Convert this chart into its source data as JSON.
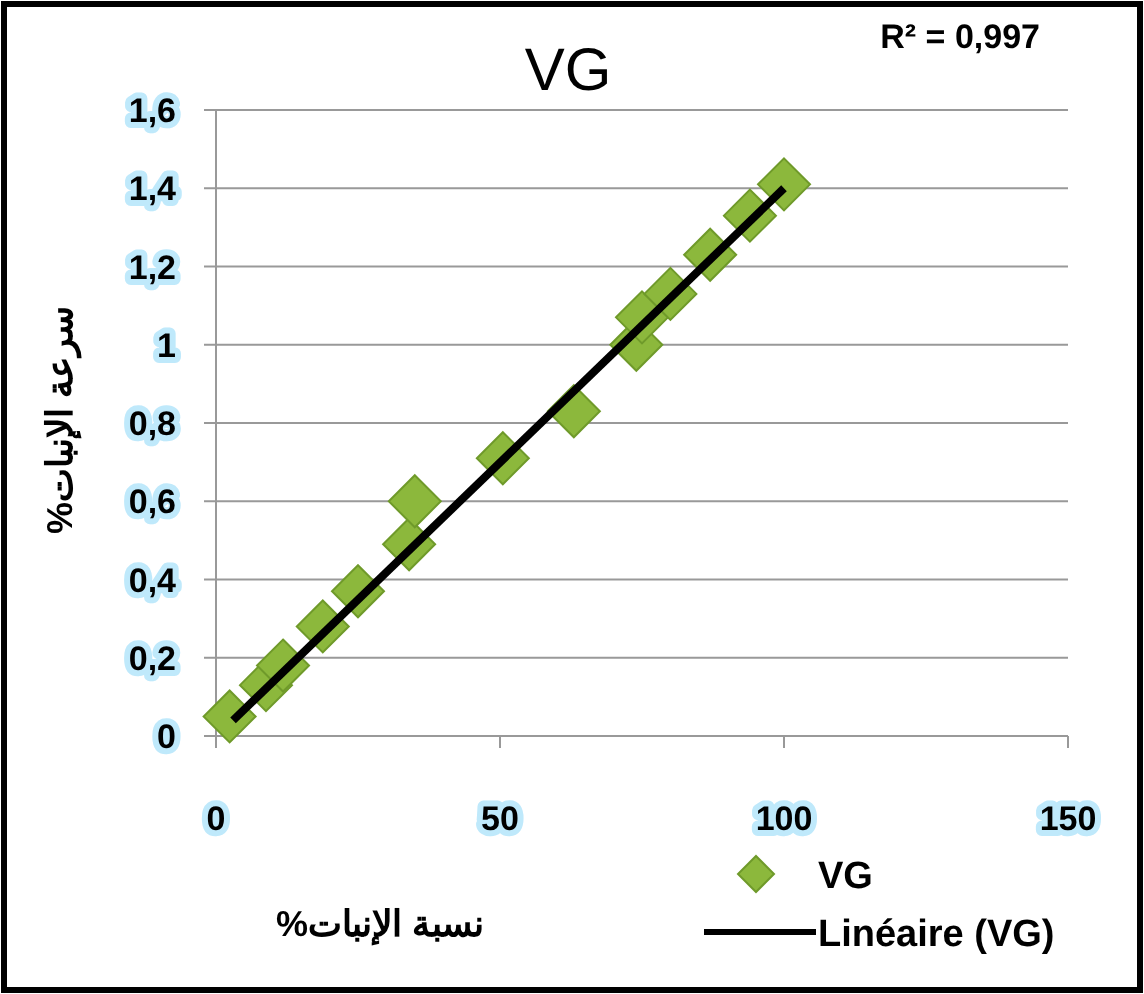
{
  "chart_data": {
    "type": "scatter",
    "title": "VG",
    "xlabel": "نسبة الإنبات%",
    "ylabel": "سرعة الإنبات%",
    "annotations": [
      "R² = 0,997"
    ],
    "series": [
      {
        "name": "VG",
        "type": "scatter",
        "color": "#8cb83c",
        "marker": "diamond",
        "x": [
          2.4,
          8.8,
          11.8,
          18.8,
          25,
          34,
          35,
          50.5,
          63,
          74,
          75,
          80,
          87,
          94,
          100
        ],
        "values": [
          0.05,
          0.13,
          0.18,
          0.28,
          0.37,
          0.49,
          0.6,
          0.71,
          0.83,
          1.0,
          1.07,
          1.13,
          1.23,
          1.33,
          1.41
        ]
      },
      {
        "name": "Linéaire (VG)",
        "type": "line",
        "color": "#000000",
        "line_style": "solid",
        "x": [
          3,
          100
        ],
        "values": [
          0.04,
          1.4
        ]
      }
    ],
    "xlim": [
      0,
      150
    ],
    "xticks": [
      0,
      50,
      100,
      150
    ],
    "ylim": [
      0,
      1.6
    ],
    "yticks": [
      0,
      {
        "value": 0.2,
        "label": "0,2"
      },
      {
        "value": 0.4,
        "label": "0,4"
      },
      {
        "value": 0.6,
        "label": "0,6"
      },
      {
        "value": 0.8,
        "label": "0,8"
      },
      1,
      {
        "value": 1.2,
        "label": "1,2"
      },
      {
        "value": 1.4,
        "label": "1,4"
      },
      {
        "value": 1.6,
        "label": "1,6"
      }
    ],
    "grid": "y",
    "legend": "bottom right"
  }
}
